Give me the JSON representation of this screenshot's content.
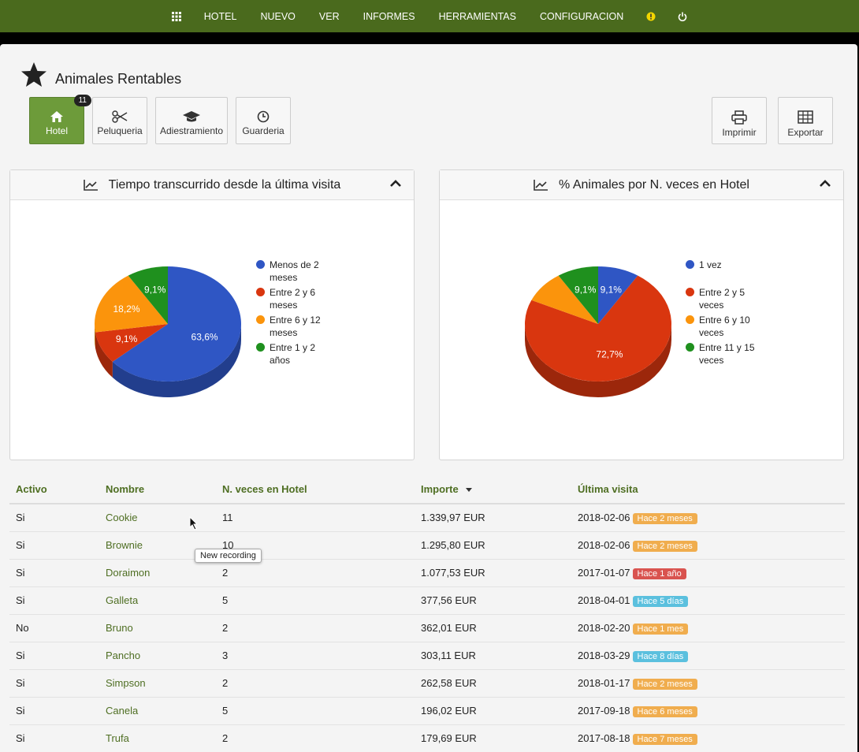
{
  "nav": {
    "items": [
      "HOTEL",
      "NUEVO",
      "VER",
      "INFORMES",
      "HERRAMIENTAS",
      "CONFIGURACION"
    ]
  },
  "header": {
    "title": "Animales Rentables"
  },
  "toolbar": {
    "left": [
      {
        "label": "Hotel",
        "badge": 11
      },
      {
        "label": "Peluqueria"
      },
      {
        "label": "Adiestramiento"
      },
      {
        "label": "Guarderia"
      }
    ],
    "right": [
      {
        "label": "Imprimir"
      },
      {
        "label": "Exportar"
      }
    ]
  },
  "chart_data": [
    {
      "type": "pie",
      "title": "Tiempo transcurrido desde la última visita",
      "categories": [
        "Menos de 2 meses",
        "Entre 2 y 6 meses",
        "Entre 6 y 12 meses",
        "Entre 1 y 2 años"
      ],
      "values": [
        63.6,
        9.1,
        18.2,
        9.1
      ],
      "value_labels": [
        "63,6%",
        "9,1%",
        "18,2%",
        "9,1%"
      ],
      "colors": [
        "#2f56c4",
        "#d9360f",
        "#fb940c",
        "#1f901e"
      ]
    },
    {
      "type": "pie",
      "title": "% Animales por N. veces en Hotel",
      "categories": [
        "1 vez",
        "Entre 2 y 5 veces",
        "Entre 6 y 10 veces",
        "Entre 11 y 15 veces"
      ],
      "values": [
        9.1,
        72.7,
        9.1,
        9.1
      ],
      "value_labels": [
        "9,1%",
        "72,7%",
        null,
        "9,1%"
      ],
      "colors": [
        "#2f56c4",
        "#d9360f",
        "#fb940c",
        "#1f901e"
      ]
    }
  ],
  "table": {
    "columns": [
      "Activo",
      "Nombre",
      "N. veces en Hotel",
      "Importe",
      "Última visita"
    ],
    "rows": [
      [
        "Si",
        "Cookie",
        "11",
        "1.339,97 EUR",
        "2018-02-06",
        "Hace 2 meses"
      ],
      [
        "Si",
        "Brownie",
        "10",
        "1.295,80 EUR",
        "2018-02-06",
        "Hace 2 meses"
      ],
      [
        "Si",
        "Doraimon",
        "2",
        "1.077,53 EUR",
        "2017-01-07",
        "Hace 1 año"
      ],
      [
        "Si",
        "Galleta",
        "5",
        "377,56 EUR",
        "2018-04-01",
        "Hace 5 días"
      ],
      [
        "No",
        "Bruno",
        "2",
        "362,01 EUR",
        "2018-02-20",
        "Hace 1 mes"
      ],
      [
        "Si",
        "Pancho",
        "3",
        "303,11 EUR",
        "2018-03-29",
        "Hace 8 días"
      ],
      [
        "Si",
        "Simpson",
        "2",
        "262,58 EUR",
        "2018-01-17",
        "Hace 2 meses"
      ],
      [
        "Si",
        "Canela",
        "5",
        "196,02 EUR",
        "2017-09-18",
        "Hace 6 meses"
      ],
      [
        "Si",
        "Trufa",
        "2",
        "179,69 EUR",
        "2017-08-18",
        "Hace 7 meses"
      ]
    ],
    "badge_colors": [
      "#f0ad4e",
      "#f0ad4e",
      "#d9534f",
      "#5bc0de",
      "#f0ad4e",
      "#5bc0de",
      "#f0ad4e",
      "#f0ad4e",
      "#f0ad4e"
    ]
  },
  "tooltip": "New recording"
}
